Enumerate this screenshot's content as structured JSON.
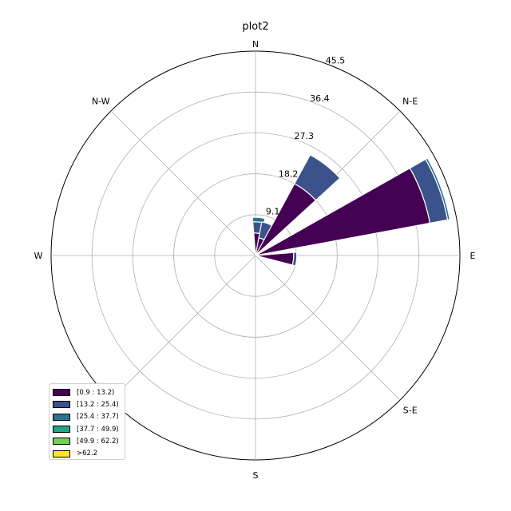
{
  "chart_data": {
    "type": "windrose",
    "title": "plot2",
    "directions": [
      "N",
      "N-E",
      "E",
      "S-E",
      "S",
      "S-W",
      "W",
      "N-W"
    ],
    "radial_ticks": [
      9.1,
      18.2,
      27.3,
      36.4,
      45.5
    ],
    "rmax": 45.5,
    "bins": [
      {
        "name": "[0.9 : 13.2)",
        "color": "#440154"
      },
      {
        "name": "[13.2 : 25.4)",
        "color": "#3b528b"
      },
      {
        "name": "[25.4 : 37.7)",
        "color": "#2c728e"
      },
      {
        "name": "[37.7 : 49.9)",
        "color": "#21a585"
      },
      {
        "name": "[49.9 : 62.2)",
        "color": "#75d054"
      },
      {
        "name": ">62.2",
        "color": "#fde725"
      }
    ],
    "sectors": [
      {
        "angle": 5,
        "cumulative": [
          5.0,
          7.5,
          8.5
        ]
      },
      {
        "angle": 20,
        "cumulative": [
          4.0,
          7.6
        ]
      },
      {
        "angle": 38,
        "cumulative": [
          18.2,
          25.5
        ]
      },
      {
        "angle": 70,
        "cumulative": [
          39.5,
          43.5,
          44.0
        ]
      },
      {
        "angle": 95,
        "cumulative": [
          8.5,
          9.2
        ]
      }
    ],
    "legend_position": "lower-left"
  }
}
